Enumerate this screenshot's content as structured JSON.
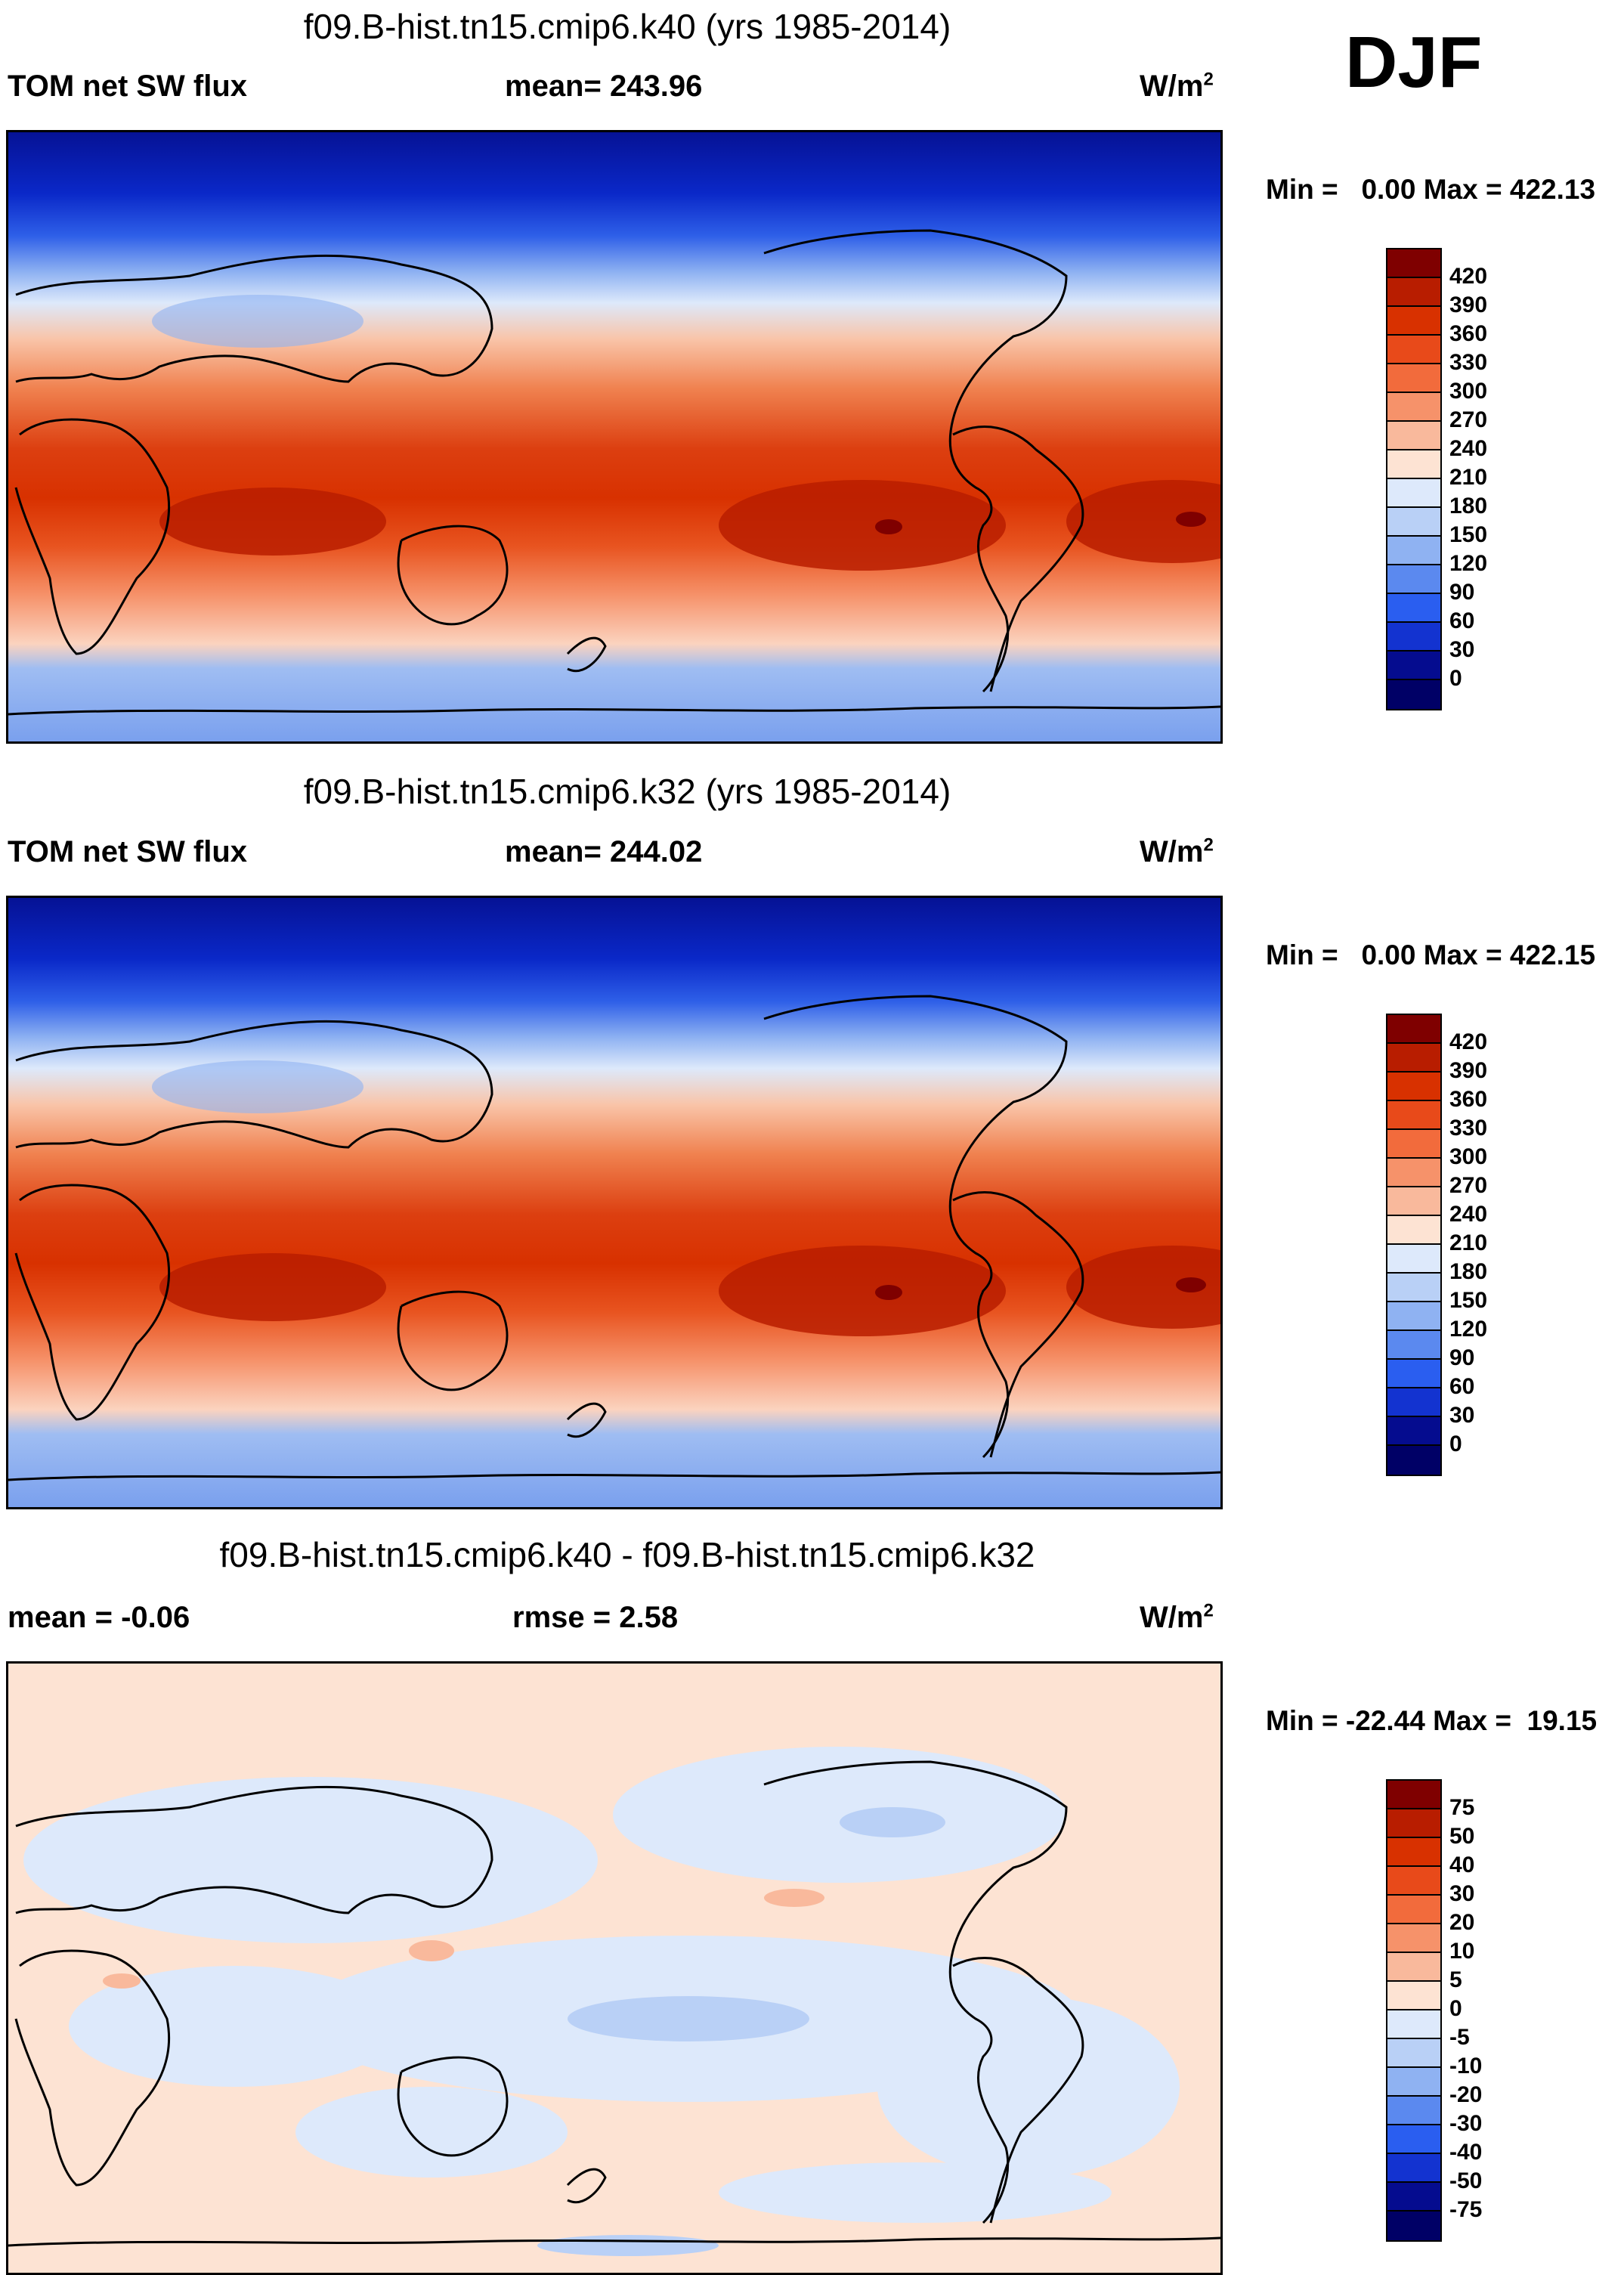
{
  "season": "DJF",
  "panels": [
    {
      "title": "f09.B-hist.tn15.cmip6.k40 (yrs 1985-2014)",
      "left_label": "TOM net SW flux",
      "center_label": "mean= 243.96",
      "units": "W/m",
      "units_sup": "2",
      "min_label": "Min =",
      "min_value": "0.00",
      "max_label": "Max =",
      "max_value": "422.13",
      "colorbar_labels": [
        "420",
        "390",
        "360",
        "330",
        "300",
        "270",
        "240",
        "210",
        "180",
        "150",
        "120",
        "90",
        "60",
        "30",
        "0"
      ],
      "colorbar_colors": [
        "#7f0000",
        "#b81d00",
        "#d83100",
        "#e84a1a",
        "#f26b3c",
        "#f6926a",
        "#f9b99c",
        "#fde3d3",
        "#dde9fb",
        "#b9d0f6",
        "#8fb2f2",
        "#5b89ef",
        "#2a5ef0",
        "#1333d0",
        "#050c8f",
        "#000066"
      ]
    },
    {
      "title": "f09.B-hist.tn15.cmip6.k32 (yrs 1985-2014)",
      "left_label": "TOM net SW flux",
      "center_label": "mean= 244.02",
      "units": "W/m",
      "units_sup": "2",
      "min_label": "Min =",
      "min_value": "0.00",
      "max_label": "Max =",
      "max_value": "422.15",
      "colorbar_labels": [
        "420",
        "390",
        "360",
        "330",
        "300",
        "270",
        "240",
        "210",
        "180",
        "150",
        "120",
        "90",
        "60",
        "30",
        "0"
      ],
      "colorbar_colors": [
        "#7f0000",
        "#b81d00",
        "#d83100",
        "#e84a1a",
        "#f26b3c",
        "#f6926a",
        "#f9b99c",
        "#fde3d3",
        "#dde9fb",
        "#b9d0f6",
        "#8fb2f2",
        "#5b89ef",
        "#2a5ef0",
        "#1333d0",
        "#050c8f",
        "#000066"
      ]
    },
    {
      "title": "f09.B-hist.tn15.cmip6.k40 - f09.B-hist.tn15.cmip6.k32",
      "left_label": "mean =  -0.06",
      "center_label": "rmse =   2.58",
      "units": "W/m",
      "units_sup": "2",
      "min_label": "Min =",
      "min_value": "-22.44",
      "max_label": "Max =",
      "max_value": "19.15",
      "colorbar_labels": [
        "75",
        "50",
        "40",
        "30",
        "20",
        "10",
        "5",
        "0",
        "-5",
        "-10",
        "-20",
        "-30",
        "-40",
        "-50",
        "-75"
      ],
      "colorbar_colors": [
        "#7f0000",
        "#b81d00",
        "#d83100",
        "#e84a1a",
        "#f26b3c",
        "#f6926a",
        "#f9b99c",
        "#fde3d3",
        "#dde9fb",
        "#b9d0f6",
        "#8fb2f2",
        "#5b89ef",
        "#2a5ef0",
        "#1333d0",
        "#050c8f",
        "#000066"
      ]
    }
  ]
}
